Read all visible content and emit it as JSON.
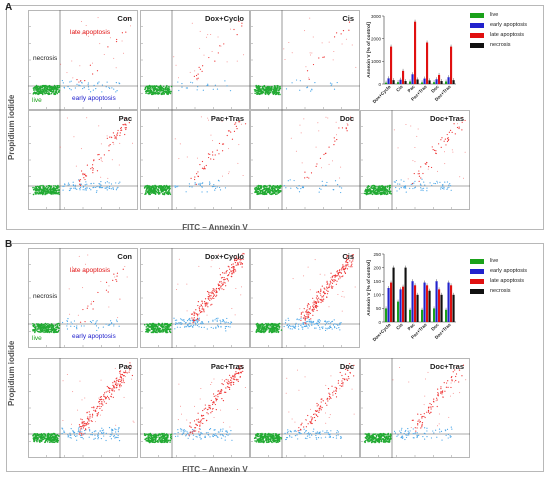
{
  "panels": [
    {
      "letter": "A",
      "y_axis_label": "Propidium iodide",
      "x_axis_label": "FITC – Annexin V",
      "plots": [
        {
          "title": "Con",
          "labels": {
            "late": "late apoptosis",
            "necrosis": "necrosis",
            "early": "early apoptosis",
            "live": "live"
          },
          "early_fraction": 0.22,
          "late_fraction": 0.05
        },
        {
          "title": "Dox+Cyclo",
          "labels": null,
          "early_fraction": 0.1,
          "late_fraction": 0.08
        },
        {
          "title": "Cis",
          "labels": null,
          "early_fraction": 0.08,
          "late_fraction": 0.05
        },
        {
          "title": "Pac",
          "labels": null,
          "early_fraction": 0.4,
          "late_fraction": 0.28
        },
        {
          "title": "Pac+Tras",
          "labels": null,
          "early_fraction": 0.18,
          "late_fraction": 0.18
        },
        {
          "title": "Doc",
          "labels": null,
          "early_fraction": 0.15,
          "late_fraction": 0.1
        },
        {
          "title": "Doc+Tras",
          "labels": null,
          "early_fraction": 0.32,
          "late_fraction": 0.2
        }
      ]
    },
    {
      "letter": "B",
      "y_axis_label": "Propidium iodide",
      "x_axis_label": "FITC – Annexin V",
      "plots": [
        {
          "title": "Con",
          "labels": {
            "late": "late apoptosis",
            "necrosis": "necrosis",
            "early": "early apoptosis",
            "live": "live"
          },
          "early_fraction": 0.2,
          "late_fraction": 0.08
        },
        {
          "title": "Dox+Cyclo",
          "labels": null,
          "early_fraction": 0.55,
          "late_fraction": 0.8
        },
        {
          "title": "Cis",
          "labels": null,
          "early_fraction": 0.6,
          "late_fraction": 0.9
        },
        {
          "title": "Pac",
          "labels": null,
          "early_fraction": 0.5,
          "late_fraction": 0.75
        },
        {
          "title": "Pac+Tras",
          "labels": null,
          "early_fraction": 0.45,
          "late_fraction": 0.65
        },
        {
          "title": "Doc",
          "labels": null,
          "early_fraction": 0.4,
          "late_fraction": 0.45
        },
        {
          "title": "Doc+Tras",
          "labels": null,
          "early_fraction": 0.35,
          "late_fraction": 0.35
        }
      ]
    }
  ],
  "colors": {
    "live": "#1aa11a",
    "early": "#2222cc",
    "late": "#e01010",
    "necrosis": "#111111",
    "dot_live": "#22aa33",
    "dot_early": "#4aa6e8",
    "dot_late": "#ee3333"
  },
  "chart_data": [
    {
      "type": "bar",
      "title": "",
      "ylabel": "Annexin V [% of control]",
      "xlabel": "",
      "ylim": [
        0,
        3000
      ],
      "yticks": [
        0,
        1000,
        2000,
        3000
      ],
      "categories": [
        "Dox+Cyclo",
        "Cis",
        "Pac",
        "Pac+Tras",
        "Doc",
        "Doc+Tras"
      ],
      "series": [
        {
          "name": "live",
          "values": [
            60,
            80,
            110,
            70,
            80,
            110
          ]
        },
        {
          "name": "early apoptosis",
          "values": [
            250,
            190,
            430,
            240,
            210,
            300
          ]
        },
        {
          "name": "late apoptosis",
          "values": [
            1650,
            580,
            2750,
            1830,
            400,
            1650
          ]
        },
        {
          "name": "necrosis",
          "values": [
            170,
            130,
            200,
            160,
            130,
            170
          ]
        }
      ],
      "legend": [
        "live",
        "early apoptosis",
        "late apoptosis",
        "necrosis"
      ],
      "legend_position": "right"
    },
    {
      "type": "bar",
      "title": "",
      "ylabel": "Annexin V [% of control]",
      "xlabel": "",
      "ylim": [
        0,
        250
      ],
      "yticks": [
        0,
        50,
        100,
        150,
        200,
        250
      ],
      "categories": [
        "Dox+Cyclo",
        "Cis",
        "Pac",
        "Pac+Tras",
        "Doc",
        "Doc+Tras"
      ],
      "series": [
        {
          "name": "live",
          "values": [
            50,
            75,
            45,
            45,
            50,
            45
          ]
        },
        {
          "name": "early apoptosis",
          "values": [
            125,
            120,
            150,
            145,
            150,
            145
          ]
        },
        {
          "name": "late apoptosis",
          "values": [
            145,
            130,
            135,
            135,
            120,
            135
          ]
        },
        {
          "name": "necrosis",
          "values": [
            200,
            200,
            100,
            115,
            100,
            100
          ]
        }
      ],
      "legend": [
        "live",
        "early apoptosis",
        "late apoptosis",
        "necrosis"
      ],
      "legend_position": "right"
    }
  ]
}
